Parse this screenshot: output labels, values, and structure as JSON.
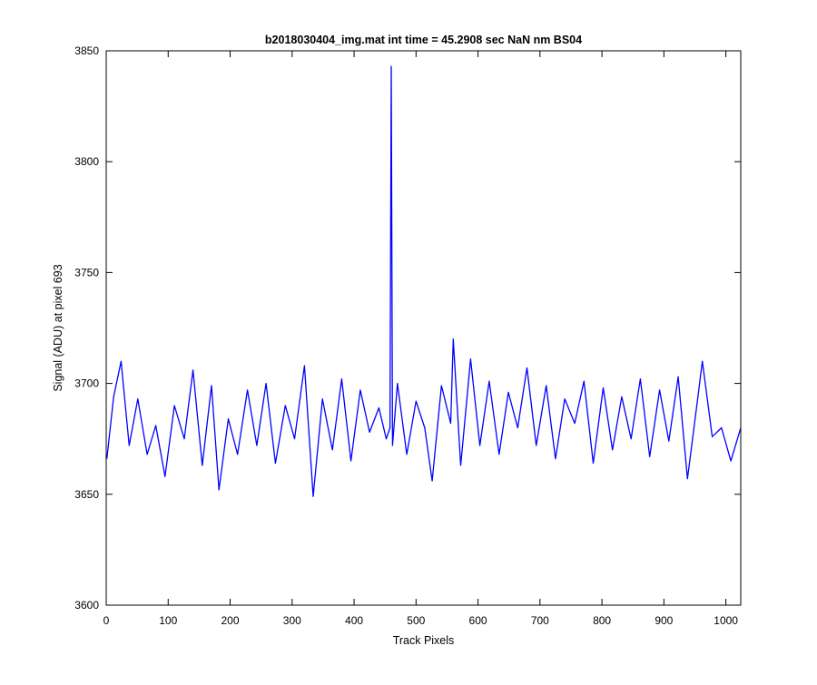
{
  "chart_data": {
    "type": "line",
    "title": "b2018030404_img.mat int time = 45.2908 sec  NaN nm BS04",
    "xlabel": "Track Pixels",
    "ylabel": "Signal (ADU) at pixel 693",
    "xlim": [
      0,
      1024
    ],
    "ylim": [
      3600,
      3850
    ],
    "xticks": [
      0,
      100,
      200,
      300,
      400,
      500,
      600,
      700,
      800,
      900,
      1000
    ],
    "yticks": [
      3600,
      3650,
      3700,
      3750,
      3800,
      3850
    ],
    "grid": false,
    "line_color": "#0000ff",
    "series": [
      {
        "x": [
          1,
          12,
          24,
          37,
          51,
          66,
          80,
          95,
          110,
          126,
          140,
          155,
          170,
          182,
          197,
          212,
          228,
          243,
          258,
          273,
          289,
          304,
          320,
          334,
          349,
          365,
          380,
          395,
          410,
          425,
          440,
          452,
          458,
          460,
          462,
          470,
          485,
          500,
          514,
          526,
          541,
          556,
          560,
          572,
          588,
          603,
          618,
          634,
          649,
          664,
          679,
          694,
          710,
          725,
          740,
          756,
          771,
          786,
          802,
          817,
          832,
          847,
          862,
          877,
          893,
          908,
          923,
          938,
          954,
          962,
          978,
          993,
          1008,
          1024
        ],
        "y": [
          3666,
          3694,
          3710,
          3672,
          3693,
          3668,
          3681,
          3658,
          3690,
          3675,
          3706,
          3663,
          3699,
          3652,
          3684,
          3668,
          3697,
          3672,
          3700,
          3664,
          3690,
          3675,
          3708,
          3649,
          3693,
          3670,
          3702,
          3665,
          3697,
          3678,
          3689,
          3675,
          3680,
          3843,
          3672,
          3700,
          3668,
          3692,
          3680,
          3656,
          3699,
          3682,
          3720,
          3663,
          3711,
          3672,
          3701,
          3668,
          3696,
          3680,
          3707,
          3672,
          3699,
          3666,
          3693,
          3682,
          3701,
          3664,
          3698,
          3670,
          3694,
          3675,
          3702,
          3667,
          3697,
          3674,
          3703,
          3657,
          3692,
          3710,
          3676,
          3680,
          3665,
          3680
        ]
      }
    ]
  }
}
